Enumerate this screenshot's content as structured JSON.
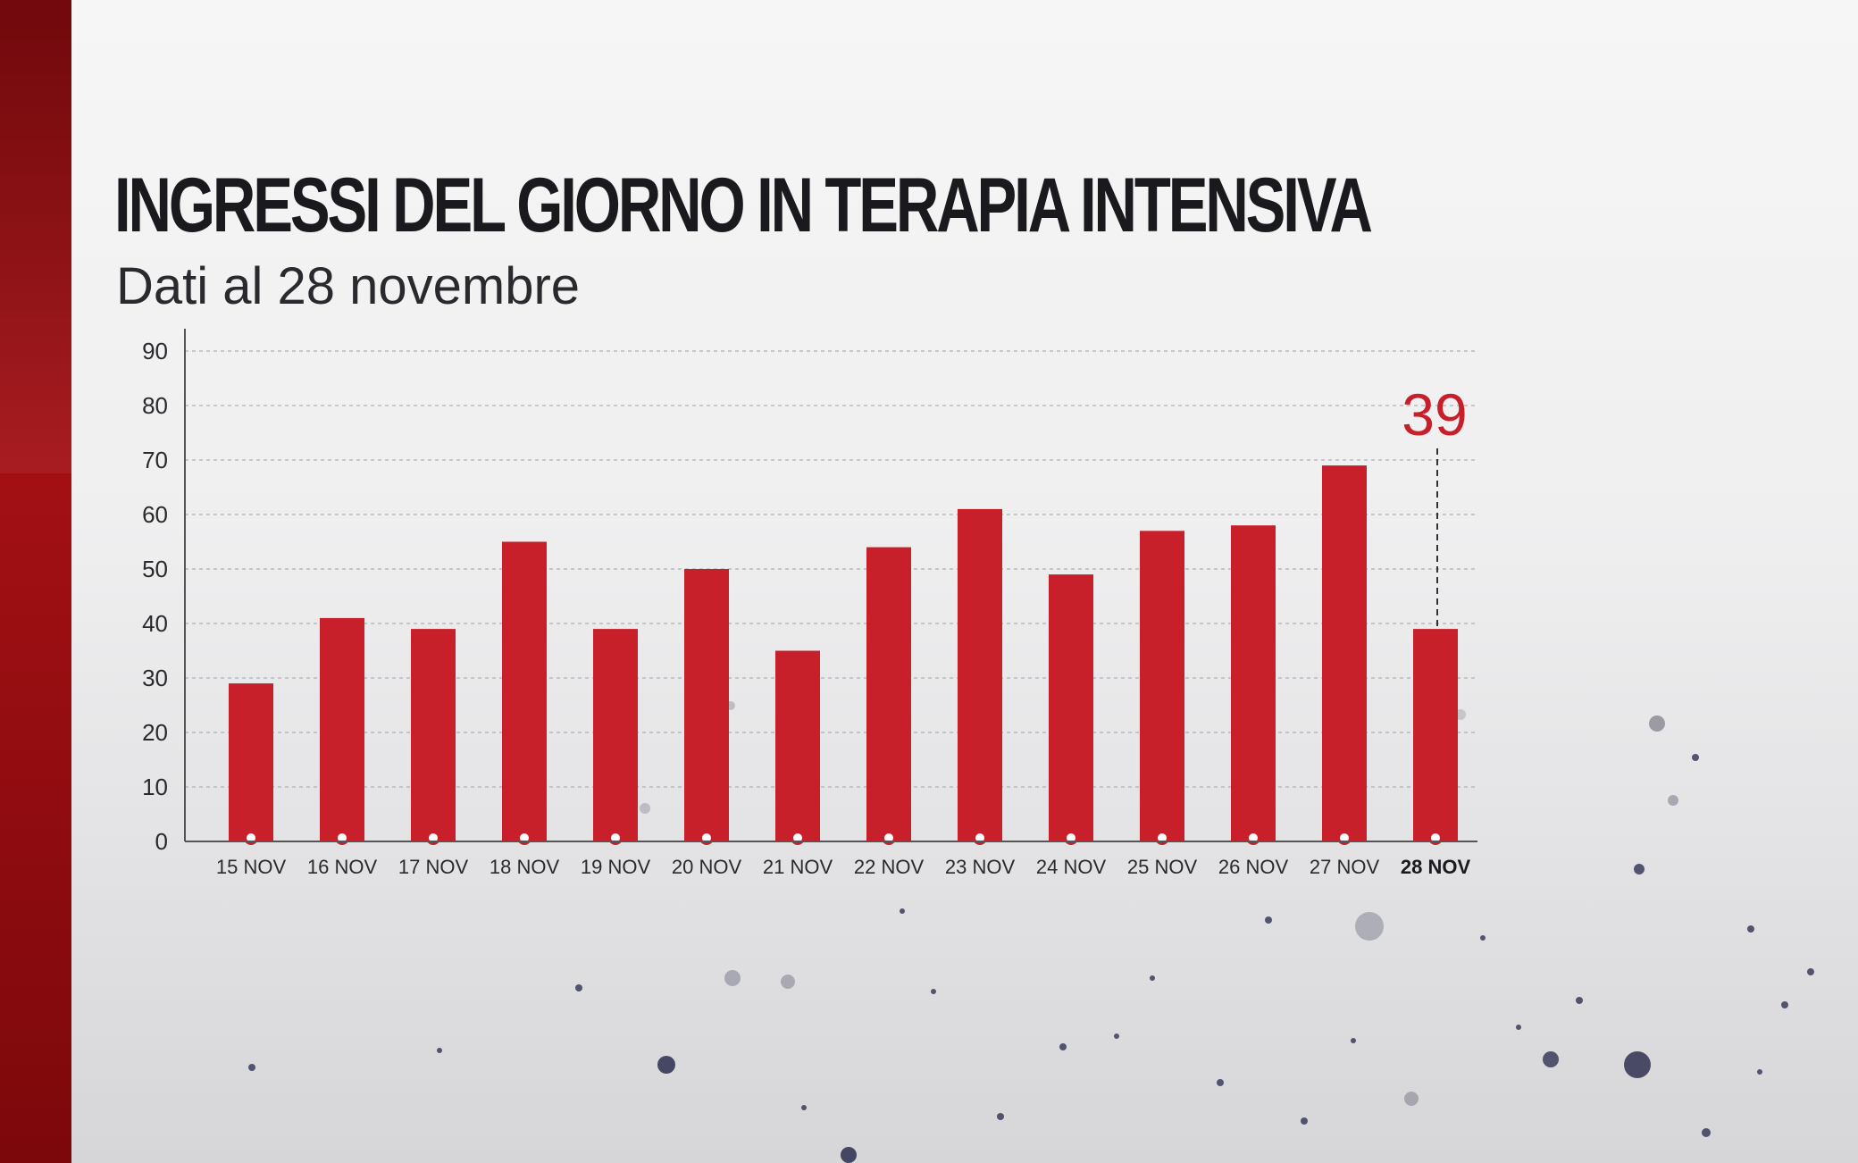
{
  "colors": {
    "bar": "#c8202b",
    "accent_band": "#a31014",
    "text": "#1a1a1e"
  },
  "chart_data": {
    "type": "bar",
    "title": "INGRESSI DEL GIORNO IN TERAPIA INTENSIVA",
    "subtitle": "Dati al 28 novembre",
    "categories": [
      "15 NOV",
      "16 NOV",
      "17 NOV",
      "18 NOV",
      "19 NOV",
      "20 NOV",
      "21 NOV",
      "22 NOV",
      "23 NOV",
      "24 NOV",
      "25 NOV",
      "26 NOV",
      "27 NOV",
      "28 NOV"
    ],
    "values": [
      29,
      41,
      39,
      55,
      39,
      50,
      35,
      54,
      61,
      49,
      57,
      58,
      69,
      39
    ],
    "ylim": [
      0,
      90
    ],
    "yticks": [
      0,
      10,
      20,
      30,
      40,
      50,
      60,
      70,
      80,
      90
    ],
    "grid": true,
    "highlight_category": "28 NOV",
    "callout": "39"
  }
}
